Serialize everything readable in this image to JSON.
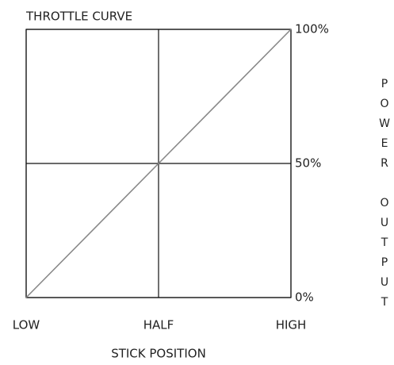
{
  "chart_data": {
    "type": "line",
    "title": "THROTTLE CURVE",
    "x_label": "STICK POSITION",
    "y_label": "POWER OUTPUT",
    "categories": [
      "LOW",
      "HALF",
      "HIGH"
    ],
    "values": [
      0,
      50,
      100
    ],
    "color": "#888888",
    "ylim": [
      0,
      100
    ],
    "yticks": [
      {
        "value": 0,
        "label": "0%"
      },
      {
        "value": 50,
        "label": "50%"
      },
      {
        "value": 100,
        "label": "100%"
      }
    ],
    "grid": true,
    "y_axis_side": "right"
  }
}
